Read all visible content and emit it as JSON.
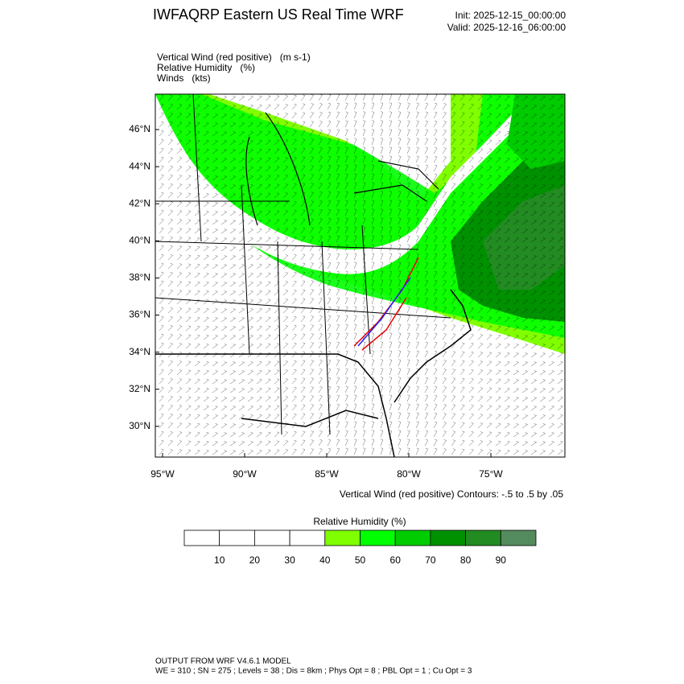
{
  "header": {
    "title": "IWFAQRP Eastern US Real Time WRF",
    "init": "Init: 2025-12-15_00:00:00",
    "valid": "Valid: 2025-12-16_06:00:00"
  },
  "fields": [
    "Vertical Wind (red positive)   (m s-1)",
    "Relative Humidity   (%)",
    "Winds   (kts)"
  ],
  "map": {
    "lat_ticks": [
      {
        "value": 46,
        "label": "46°N"
      },
      {
        "value": 44,
        "label": "44°N"
      },
      {
        "value": 42,
        "label": "42°N"
      },
      {
        "value": 40,
        "label": "40°N"
      },
      {
        "value": 38,
        "label": "38°N"
      },
      {
        "value": 36,
        "label": "36°N"
      },
      {
        "value": 34,
        "label": "34°N"
      },
      {
        "value": 32,
        "label": "32°N"
      },
      {
        "value": 30,
        "label": "30°N"
      }
    ],
    "lon_ticks": [
      {
        "value": -95,
        "label": "95°W"
      },
      {
        "value": -90,
        "label": "90°W"
      },
      {
        "value": -85,
        "label": "85°W"
      },
      {
        "value": -80,
        "label": "80°W"
      },
      {
        "value": -75,
        "label": "75°W"
      }
    ],
    "contour_note": "Vertical Wind (red positive) Contours: -.5 to .5 by .05"
  },
  "colorbar": {
    "title": "Relative Humidity  (%)",
    "levels": [
      10,
      20,
      30,
      40,
      50,
      60,
      70,
      80,
      90
    ],
    "colors": [
      "#ffffff",
      "#ffffff",
      "#ffffff",
      "#ffffff",
      "#80ff00",
      "#00ff00",
      "#00cc00",
      "#009100",
      "#228b22",
      "#548b5e"
    ]
  },
  "footer": {
    "line1": "OUTPUT FROM WRF V4.6.1 MODEL",
    "line2": "WE = 310 ; SN = 275 ; Levels = 38 ; Dis = 8km ; Phys Opt = 8 ; PBL Opt = 1 ; Cu Opt = 3"
  }
}
